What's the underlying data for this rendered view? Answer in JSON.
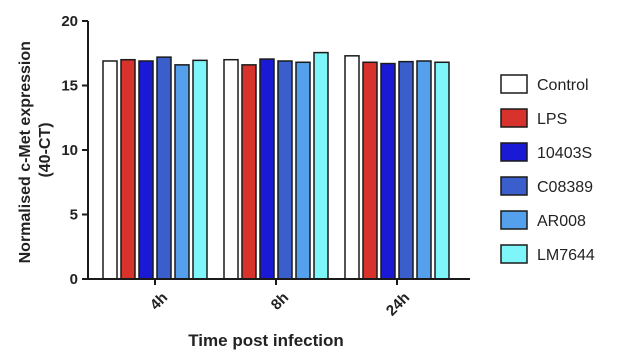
{
  "chart_data": {
    "type": "bar",
    "title": "",
    "xlabel": "Time post infection",
    "ylabel": "Normalised c-Met expression (40-CT)",
    "ylabel_lines": [
      "Normalised c-Met expression",
      "(40-CT)"
    ],
    "ylim": [
      0,
      20
    ],
    "yticks": [
      0,
      5,
      10,
      15,
      20
    ],
    "categories": [
      "4h",
      "8h",
      "24h"
    ],
    "legend_position": "right",
    "grid": false,
    "series": [
      {
        "name": "Control",
        "color": "#ffffff",
        "values": [
          16.9,
          17.0,
          17.3
        ]
      },
      {
        "name": "LPS",
        "color": "#d7322b",
        "values": [
          17.0,
          16.6,
          16.8
        ]
      },
      {
        "name": "10403S",
        "color": "#1a1ad6",
        "values": [
          16.9,
          17.05,
          16.7
        ]
      },
      {
        "name": "C08389",
        "color": "#3a5fcd",
        "values": [
          17.2,
          16.9,
          16.85
        ]
      },
      {
        "name": "AR008",
        "color": "#55a0ec",
        "values": [
          16.6,
          16.8,
          16.9
        ]
      },
      {
        "name": "LM7644",
        "color": "#7ef6f9",
        "values": [
          16.95,
          17.55,
          16.8
        ]
      }
    ]
  }
}
